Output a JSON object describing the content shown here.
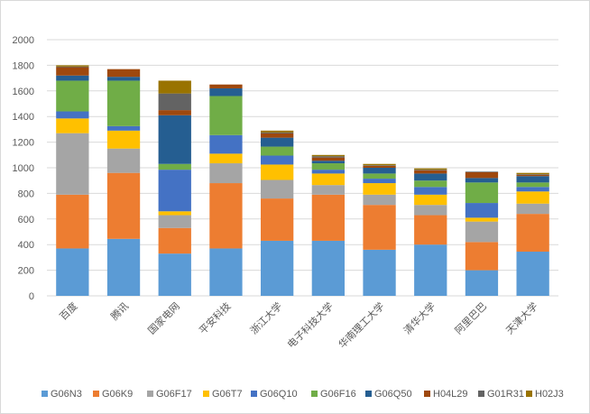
{
  "chart_data": {
    "type": "bar",
    "stacked": true,
    "title": "",
    "xlabel": "",
    "ylabel": "",
    "ylim": [
      0,
      2000
    ],
    "yticks": [
      0,
      200,
      400,
      600,
      800,
      1000,
      1200,
      1400,
      1600,
      1800,
      2000
    ],
    "grid": true,
    "legend_position": "bottom",
    "categories": [
      "百度",
      "腾讯",
      "国家电网",
      "平安科技",
      "浙江大学",
      "电子科技大学",
      "华南理工大学",
      "清华大学",
      "阿里巴巴",
      "天津大学"
    ],
    "series": [
      {
        "name": "G06N3",
        "color": "#5b9bd5",
        "values": [
          370,
          445,
          330,
          370,
          430,
          430,
          360,
          400,
          200,
          345
        ]
      },
      {
        "name": "G06K9",
        "color": "#ed7d31",
        "values": [
          420,
          515,
          200,
          510,
          330,
          360,
          350,
          230,
          220,
          295
        ]
      },
      {
        "name": "G06F17",
        "color": "#a5a5a5",
        "values": [
          480,
          190,
          100,
          155,
          145,
          75,
          80,
          80,
          160,
          80
        ]
      },
      {
        "name": "G06T7",
        "color": "#ffc000",
        "values": [
          115,
          140,
          30,
          75,
          120,
          90,
          90,
          80,
          30,
          95
        ]
      },
      {
        "name": "G06Q10",
        "color": "#4472c4",
        "values": [
          55,
          35,
          325,
          145,
          70,
          30,
          35,
          60,
          115,
          35
        ]
      },
      {
        "name": "G06F16",
        "color": "#70ad47",
        "values": [
          240,
          355,
          45,
          305,
          70,
          50,
          40,
          50,
          160,
          35
        ]
      },
      {
        "name": "G06Q50",
        "color": "#255e91",
        "values": [
          40,
          30,
          380,
          60,
          70,
          20,
          45,
          55,
          35,
          50
        ]
      },
      {
        "name": "H04L29",
        "color": "#9e480e",
        "values": [
          65,
          60,
          40,
          30,
          33,
          25,
          15,
          25,
          45,
          10
        ]
      },
      {
        "name": "G01R31",
        "color": "#636363",
        "values": [
          5,
          0,
          130,
          0,
          7,
          10,
          5,
          5,
          5,
          5
        ]
      },
      {
        "name": "H02J3",
        "color": "#997300",
        "values": [
          10,
          0,
          100,
          0,
          15,
          10,
          10,
          10,
          0,
          10
        ]
      }
    ]
  }
}
